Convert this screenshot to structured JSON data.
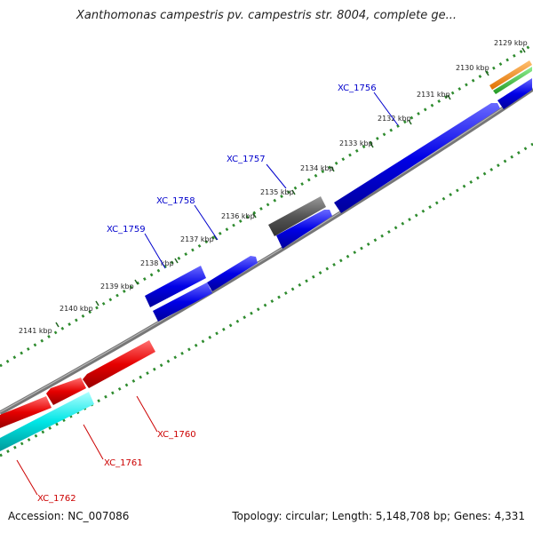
{
  "title": "Xanthomonas campestris pv. campestris str. 8004, complete ge...",
  "footer": {
    "accession": "Accession: NC_007086",
    "summary": "Topology: circular; Length: 5,148,708 bp; Genes: 4,331"
  },
  "ticks": [
    "2129 kbp",
    "2130 kbp",
    "2131 kbp",
    "2132 kbp",
    "2133 kbp",
    "2134 kbp",
    "2135 kbp",
    "2136 kbp",
    "2137 kbp",
    "2138 kbp",
    "2139 kbp",
    "2140 kbp",
    "2141 kbp"
  ],
  "gene_labels": [
    {
      "text": "XC_1756",
      "color": "#0000cc"
    },
    {
      "text": "XC_1757",
      "color": "#0000cc"
    },
    {
      "text": "XC_1758",
      "color": "#0000cc"
    },
    {
      "text": "XC_1759",
      "color": "#0000cc"
    },
    {
      "text": "XC_1760",
      "color": "#cc0000"
    },
    {
      "text": "XC_1761",
      "color": "#cc0000"
    },
    {
      "text": "XC_1762",
      "color": "#cc0000"
    }
  ],
  "colors": {
    "forward_cds": "#0000e6",
    "reverse_cds": "#e60000",
    "rna": "#00e6e6",
    "other": "#555555",
    "orange_feature": "#ff8c00",
    "green_feature": "#33cc33",
    "backbone": "#777777",
    "gc_dots": "#2e8b2e"
  }
}
